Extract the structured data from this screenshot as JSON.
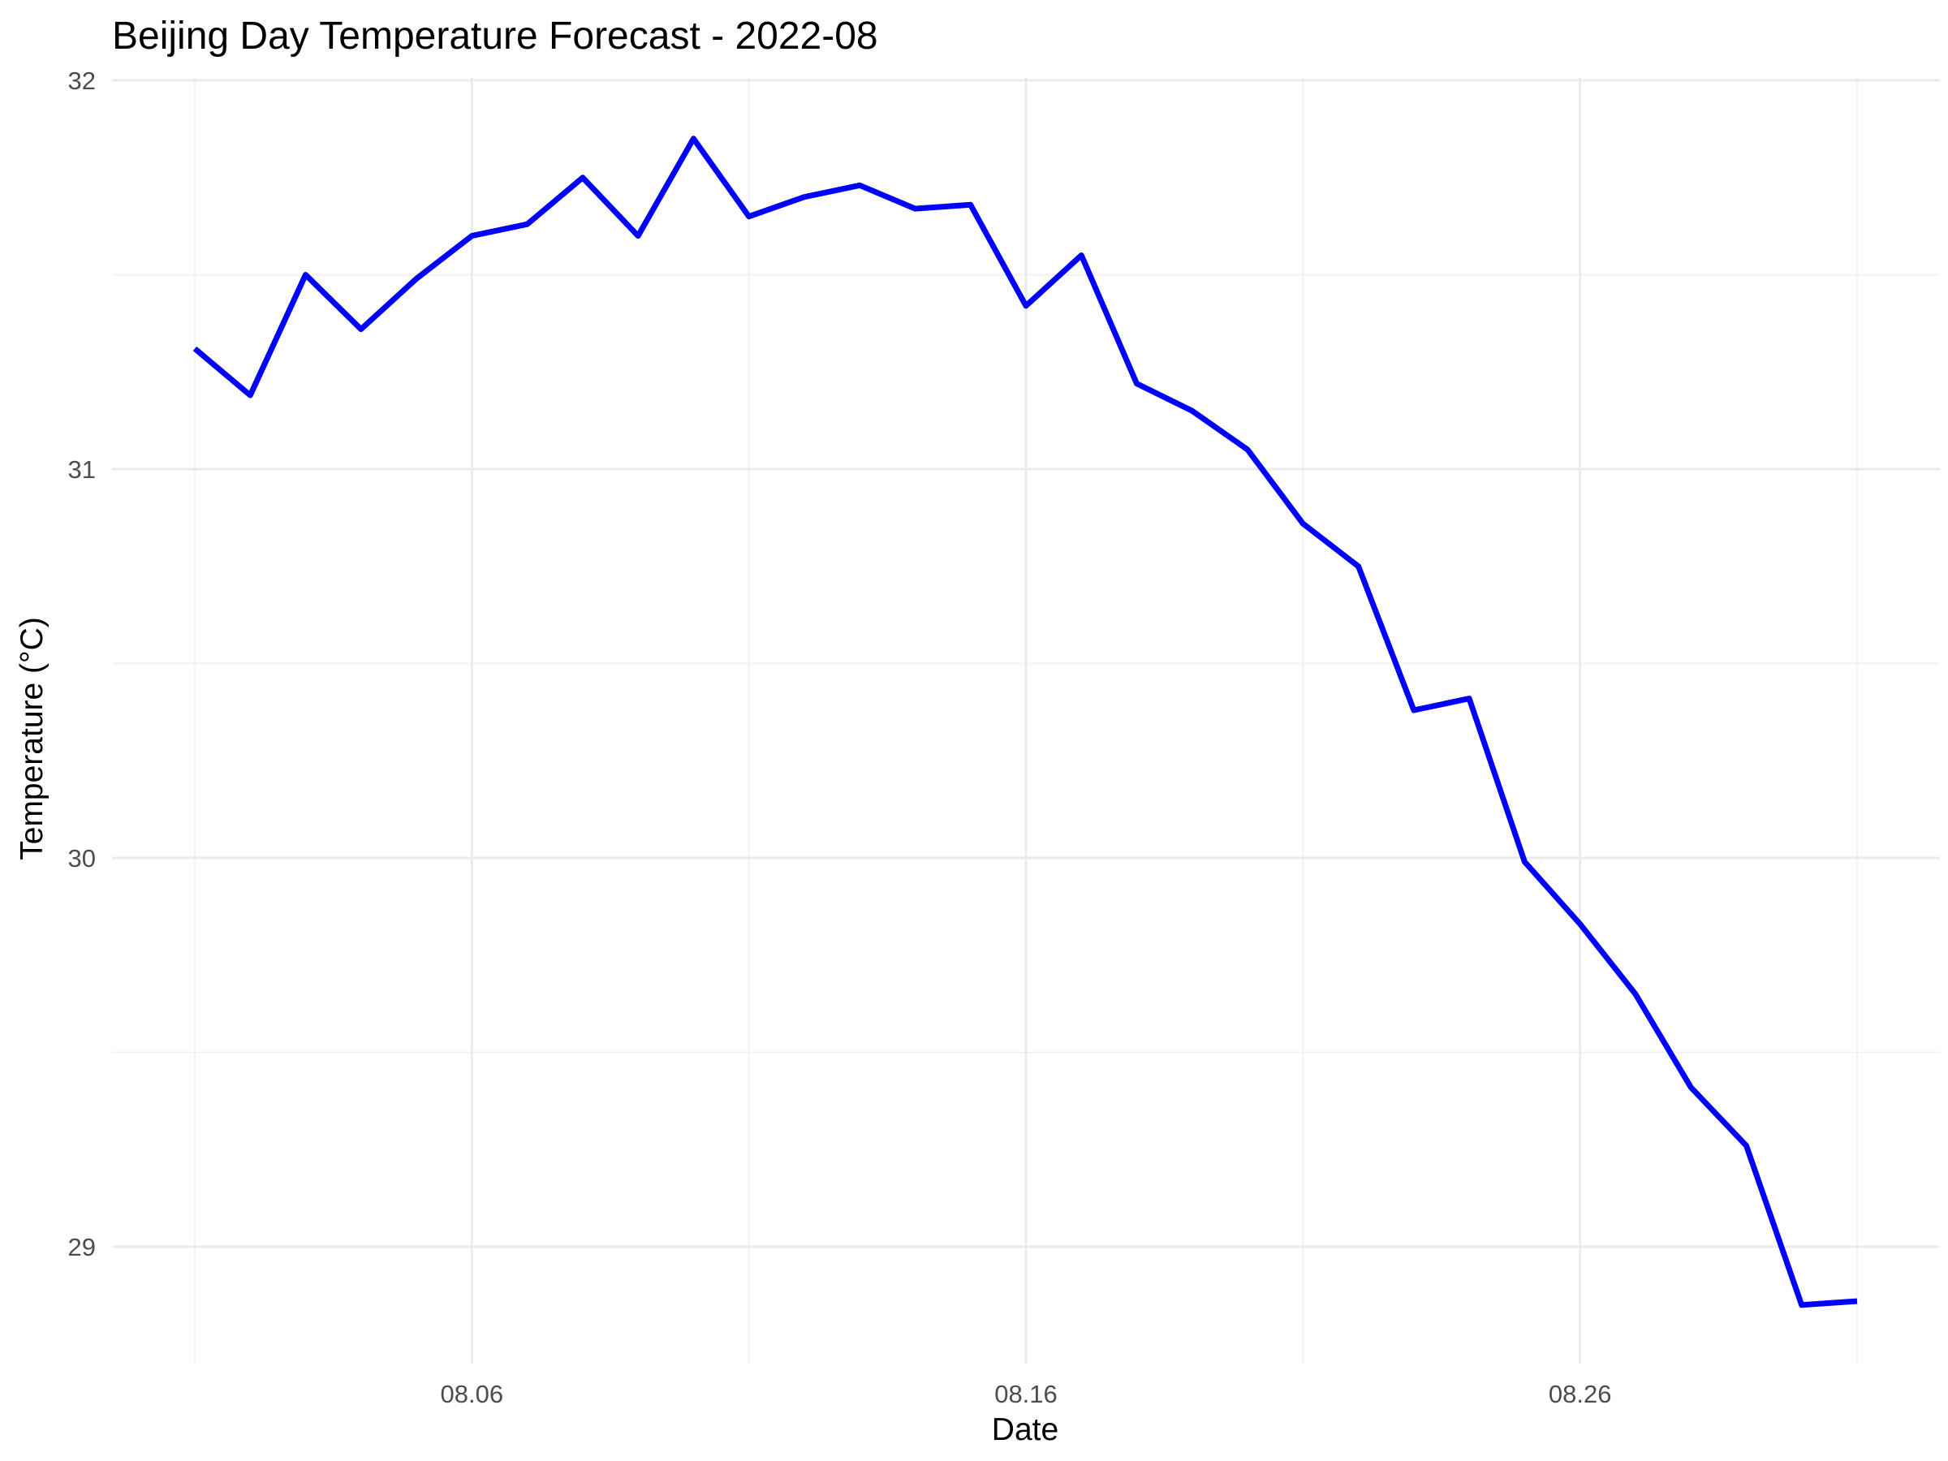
{
  "chart_data": {
    "type": "line",
    "title": "Beijing Day Temperature Forecast - 2022-08",
    "xlabel": "Date",
    "ylabel": "Temperature (°C)",
    "x_tick_labels": [
      "08.06",
      "08.16",
      "08.26"
    ],
    "y_tick_labels": [
      "29",
      "30",
      "31",
      "32"
    ],
    "xlim": [
      "2022-08-01",
      "2022-08-31"
    ],
    "ylim": [
      28.7,
      32
    ],
    "grid": true,
    "legend": "none",
    "line_color": "#0000ff",
    "series": [
      {
        "x": [
          "2022-08-01",
          "2022-08-02",
          "2022-08-03",
          "2022-08-04",
          "2022-08-05",
          "2022-08-06",
          "2022-08-07",
          "2022-08-08",
          "2022-08-09",
          "2022-08-10",
          "2022-08-11",
          "2022-08-12",
          "2022-08-13",
          "2022-08-14",
          "2022-08-15",
          "2022-08-16",
          "2022-08-17",
          "2022-08-18",
          "2022-08-19",
          "2022-08-20",
          "2022-08-21",
          "2022-08-22",
          "2022-08-23",
          "2022-08-24",
          "2022-08-25",
          "2022-08-26",
          "2022-08-27",
          "2022-08-28",
          "2022-08-29",
          "2022-08-30",
          "2022-08-31"
        ],
        "values": [
          31.31,
          31.19,
          31.5,
          31.36,
          31.49,
          31.6,
          31.63,
          31.75,
          31.6,
          31.85,
          31.65,
          31.7,
          31.73,
          31.67,
          31.68,
          31.42,
          31.55,
          31.22,
          31.15,
          31.05,
          30.86,
          30.75,
          30.38,
          30.41,
          29.99,
          29.83,
          29.65,
          29.41,
          29.26,
          28.85,
          28.86
        ]
      }
    ]
  }
}
